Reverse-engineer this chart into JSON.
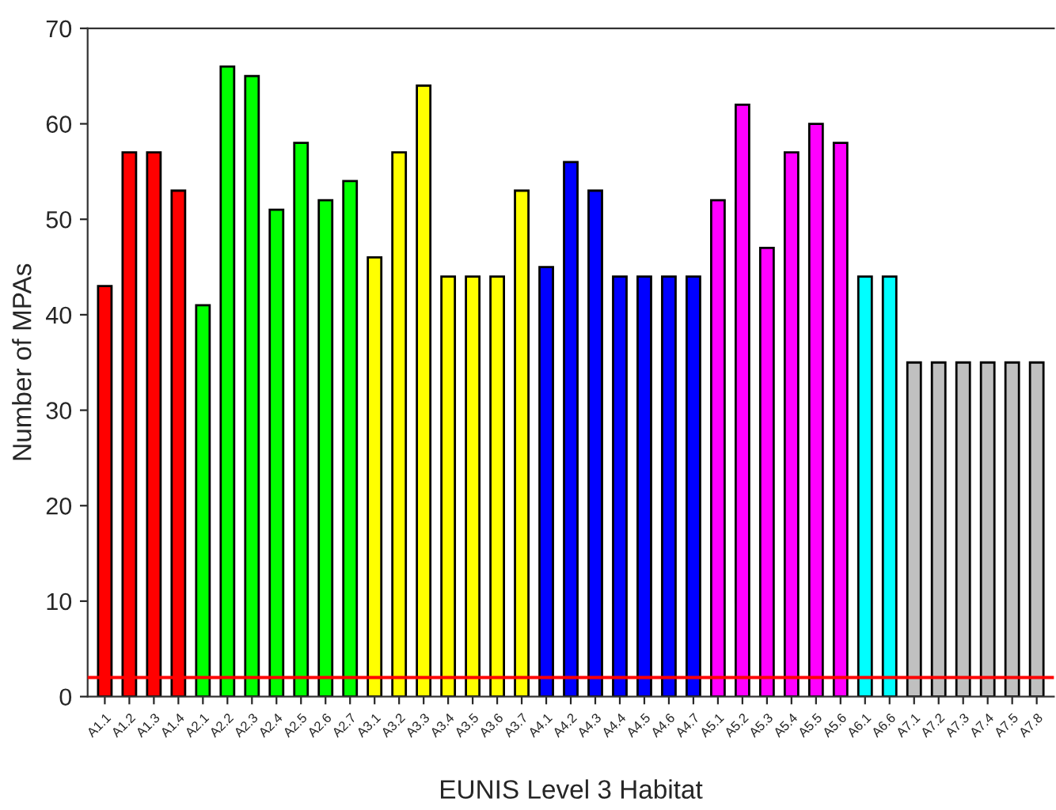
{
  "chart_data": {
    "type": "bar",
    "xlabel": "EUNIS Level 3 Habitat",
    "ylabel": "Number of MPAs",
    "categories": [
      "A1.1",
      "A1.2",
      "A1.3",
      "A1.4",
      "A2.1",
      "A2.2",
      "A2.3",
      "A2.4",
      "A2.5",
      "A2.6",
      "A2.7",
      "A3.1",
      "A3.2",
      "A3.3",
      "A3.4",
      "A3.5",
      "A3.6",
      "A3.7",
      "A4.1",
      "A4.2",
      "A4.3",
      "A4.4",
      "A4.5",
      "A4.6",
      "A4.7",
      "A5.1",
      "A5.2",
      "A5.3",
      "A5.4",
      "A5.5",
      "A5.6",
      "A6.1",
      "A6.6",
      "A7.1",
      "A7.2",
      "A7.3",
      "A7.4",
      "A7.5",
      "A7.8"
    ],
    "values": [
      43,
      57,
      57,
      53,
      41,
      66,
      65,
      51,
      58,
      52,
      54,
      46,
      57,
      64,
      44,
      44,
      44,
      53,
      45,
      56,
      53,
      44,
      44,
      44,
      44,
      52,
      62,
      47,
      57,
      60,
      58,
      44,
      44,
      35,
      35,
      35,
      35,
      35,
      35
    ],
    "colors": [
      "#ff0000",
      "#ff0000",
      "#ff0000",
      "#ff0000",
      "#00ff00",
      "#00ff00",
      "#00ff00",
      "#00ff00",
      "#00ff00",
      "#00ff00",
      "#00ff00",
      "#ffff00",
      "#ffff00",
      "#ffff00",
      "#ffff00",
      "#ffff00",
      "#ffff00",
      "#ffff00",
      "#0000ff",
      "#0000ff",
      "#0000ff",
      "#0000ff",
      "#0000ff",
      "#0000ff",
      "#0000ff",
      "#ff00ff",
      "#ff00ff",
      "#ff00ff",
      "#ff00ff",
      "#ff00ff",
      "#ff00ff",
      "#00ffff",
      "#00ffff",
      "#c0c0c0",
      "#c0c0c0",
      "#c0c0c0",
      "#c0c0c0",
      "#c0c0c0",
      "#c0c0c0"
    ],
    "ylim": [
      0,
      70
    ],
    "yticks": [
      0,
      10,
      20,
      30,
      40,
      50,
      60,
      70
    ],
    "ref_lines": [
      {
        "axis": "y",
        "value": 2,
        "color": "#ff0000",
        "line_style": "solid"
      }
    ],
    "grid": false,
    "legend": false
  }
}
